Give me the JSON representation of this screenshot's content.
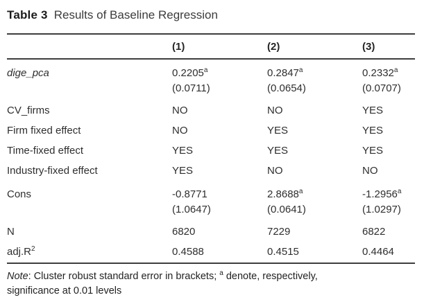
{
  "title": {
    "label": "Table 3",
    "text": "Results of Baseline Regression"
  },
  "header": {
    "col1": "(1)",
    "col2": "(2)",
    "col3": "(3)"
  },
  "rows": [
    {
      "label": "dige_pca",
      "cells": [
        {
          "v": "0.2205",
          "sup": "a",
          "se": "(0.0711)"
        },
        {
          "v": "0.2847",
          "sup": "a",
          "se": "(0.0654)"
        },
        {
          "v": "0.2332",
          "sup": "a",
          "se": "(0.0707)"
        }
      ]
    },
    {
      "label": "CV_firms",
      "cells": [
        {
          "v": "NO"
        },
        {
          "v": "NO"
        },
        {
          "v": "YES"
        }
      ]
    },
    {
      "label": "Firm fixed effect",
      "cells": [
        {
          "v": "NO"
        },
        {
          "v": "YES"
        },
        {
          "v": "YES"
        }
      ]
    },
    {
      "label": "Time-fixed effect",
      "cells": [
        {
          "v": "YES"
        },
        {
          "v": "YES"
        },
        {
          "v": "YES"
        }
      ]
    },
    {
      "label": "Industry-fixed effect",
      "cells": [
        {
          "v": "YES"
        },
        {
          "v": "NO"
        },
        {
          "v": "NO"
        }
      ]
    },
    {
      "label": "Cons",
      "cells": [
        {
          "v": "-0.8771",
          "se": "(1.0647)"
        },
        {
          "v": "2.8688",
          "sup": "a",
          "se": "(0.0641)"
        },
        {
          "v": "-1.2956",
          "sup": "a",
          "se": "(1.0297)"
        }
      ]
    },
    {
      "label": "N",
      "cells": [
        {
          "v": "6820"
        },
        {
          "v": "7229"
        },
        {
          "v": "6822"
        }
      ]
    },
    {
      "label": "adj.R",
      "label_sup": "2",
      "cells": [
        {
          "v": "0.4588"
        },
        {
          "v": "0.4515"
        },
        {
          "v": "0.4464"
        }
      ]
    }
  ],
  "note": {
    "word": "Note",
    "line1_a": ": Cluster robust standard error in brackets; ",
    "sup": "a",
    "line1_b": " denote, respectively,",
    "line2": "significance at 0.01 levels"
  },
  "colors": {
    "text": "#2b2b2b",
    "rule": "#3d3d3d",
    "background": "#ffffff"
  }
}
